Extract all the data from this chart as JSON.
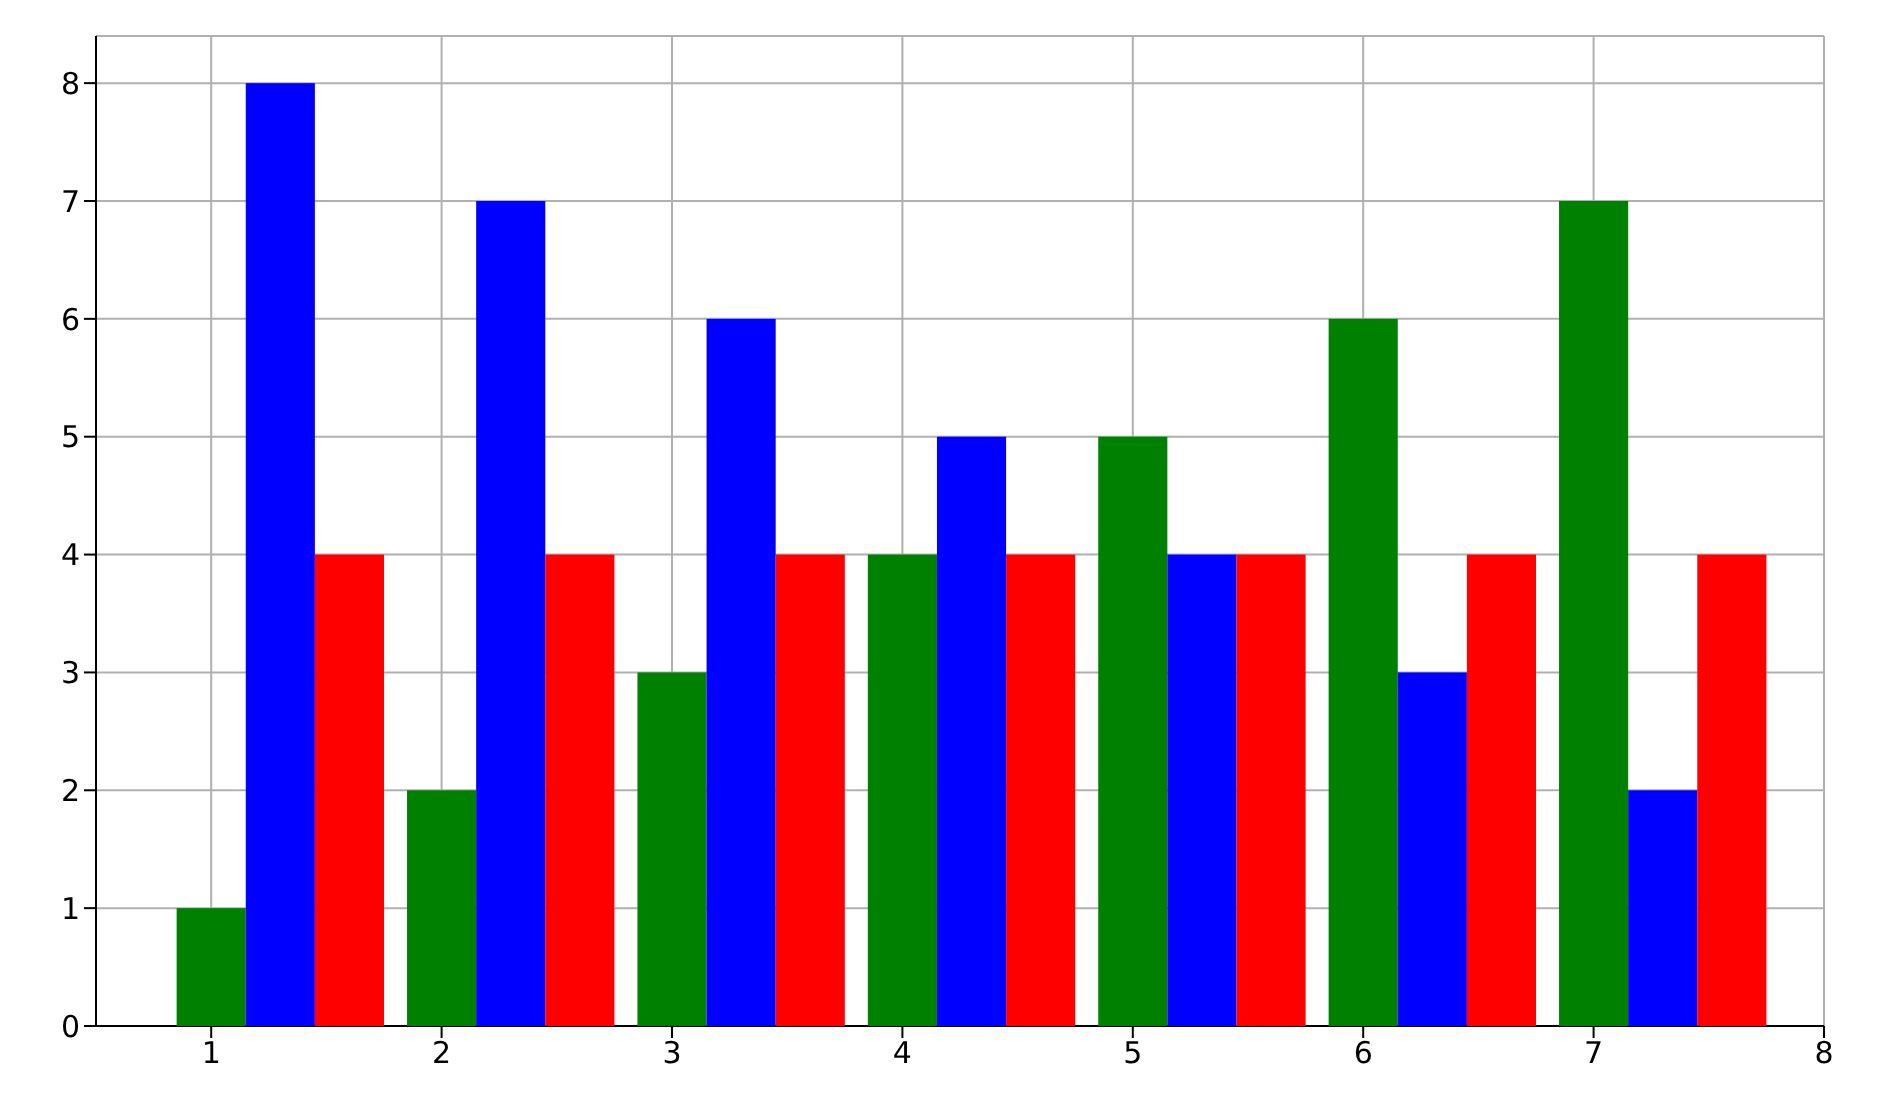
{
  "chart_data": {
    "type": "bar",
    "series": [
      {
        "color": "#008000",
        "x": [
          1,
          2,
          3,
          4,
          5,
          6,
          7
        ],
        "values": [
          1,
          2,
          3,
          4,
          5,
          6,
          7
        ]
      },
      {
        "color": "#0000ff",
        "x": [
          1.3,
          2.3,
          3.3,
          4.3,
          5.3,
          6.3,
          7.3
        ],
        "values": [
          8,
          7,
          6,
          5,
          4,
          3,
          2
        ]
      },
      {
        "color": "#ff0000",
        "x": [
          1.6,
          2.6,
          3.6,
          4.6,
          5.6,
          6.6,
          7.6
        ],
        "values": [
          4,
          4,
          4,
          4,
          4,
          4,
          4
        ]
      }
    ],
    "xlim": [
      0.5,
      8
    ],
    "xticks": [
      1,
      2,
      3,
      4,
      5,
      6,
      7,
      8
    ],
    "ylim": [
      0,
      8.4
    ],
    "yticks": [
      0,
      1,
      2,
      3,
      4,
      5,
      6,
      7,
      8
    ],
    "grid": true
  }
}
